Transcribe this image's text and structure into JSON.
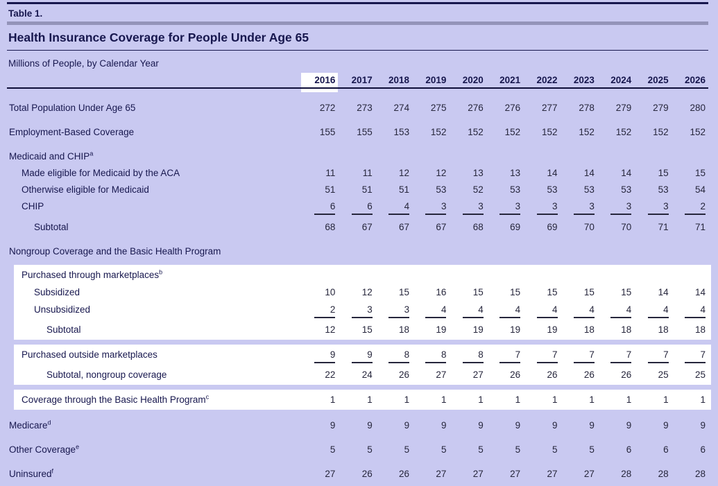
{
  "header": {
    "table_label": "Table 1.",
    "title": "Health Insurance Coverage for People Under Age 65",
    "subtitle": "Millions of People, by Calendar Year"
  },
  "columns": {
    "years": [
      "2016",
      "2017",
      "2018",
      "2019",
      "2020",
      "2021",
      "2022",
      "2023",
      "2024",
      "2025",
      "2026"
    ],
    "highlighted_year": "2016"
  },
  "rows": [
    {
      "label": "Total Population Under Age 65",
      "indent": 0,
      "gap": "lg",
      "values": [
        272,
        273,
        274,
        275,
        276,
        276,
        277,
        278,
        279,
        279,
        280
      ]
    },
    {
      "label": "Employment-Based Coverage",
      "indent": 0,
      "gap": "lg",
      "values": [
        155,
        155,
        153,
        152,
        152,
        152,
        152,
        152,
        152,
        152,
        152
      ]
    },
    {
      "label": "Medicaid and CHIP",
      "sup": "a",
      "indent": 0,
      "gap": "lg",
      "values": null
    },
    {
      "label": "Made eligible for Medicaid by the ACA",
      "indent": 1,
      "values": [
        11,
        11,
        12,
        12,
        13,
        13,
        14,
        14,
        14,
        15,
        15
      ]
    },
    {
      "label": "Otherwise eligible for Medicaid",
      "indent": 1,
      "values": [
        51,
        51,
        51,
        53,
        52,
        53,
        53,
        53,
        53,
        53,
        54
      ]
    },
    {
      "label": "CHIP",
      "indent": 1,
      "ruled": true,
      "values": [
        6,
        6,
        4,
        3,
        3,
        3,
        3,
        3,
        3,
        3,
        2
      ]
    },
    {
      "label": "Subtotal",
      "indent": 2,
      "gap": "sub",
      "values": [
        68,
        67,
        67,
        67,
        68,
        69,
        69,
        70,
        70,
        71,
        71
      ]
    },
    {
      "label": "Nongroup Coverage and the Basic Health Program",
      "indent": 0,
      "gap": "lg",
      "values": null
    },
    {
      "label": "Purchased through marketplaces",
      "sup": "b",
      "indent": 1,
      "box": "a",
      "values": null
    },
    {
      "label": "Subsidized",
      "indent": 2,
      "box": "a",
      "values": [
        10,
        12,
        15,
        16,
        15,
        15,
        15,
        15,
        15,
        14,
        14
      ]
    },
    {
      "label": "Unsubsidized",
      "indent": 2,
      "box": "a",
      "ruled": true,
      "values": [
        2,
        3,
        3,
        4,
        4,
        4,
        4,
        4,
        4,
        4,
        4
      ]
    },
    {
      "label": "Subtotal",
      "indent": 3,
      "box": "a",
      "gap": "sub",
      "values": [
        12,
        15,
        18,
        19,
        19,
        19,
        19,
        18,
        18,
        18,
        18
      ]
    },
    {
      "label": "Purchased outside marketplaces",
      "indent": 1,
      "box": "b",
      "ruled": true,
      "values": [
        9,
        9,
        8,
        8,
        8,
        7,
        7,
        7,
        7,
        7,
        7
      ]
    },
    {
      "label": "Subtotal, nongroup coverage",
      "indent": 3,
      "box": "b",
      "gap": "sub",
      "values": [
        22,
        24,
        26,
        27,
        27,
        26,
        26,
        26,
        26,
        25,
        25
      ]
    },
    {
      "label": "Coverage through the Basic Health Program",
      "sup": "c",
      "indent": 1,
      "box": "c",
      "values": [
        1,
        1,
        1,
        1,
        1,
        1,
        1,
        1,
        1,
        1,
        1
      ]
    },
    {
      "label": "Medicare",
      "sup": "d",
      "indent": 0,
      "gap": "lg",
      "values": [
        9,
        9,
        9,
        9,
        9,
        9,
        9,
        9,
        9,
        9,
        9
      ]
    },
    {
      "label": "Other Coverage",
      "sup": "e",
      "indent": 0,
      "gap": "lg",
      "values": [
        5,
        5,
        5,
        5,
        5,
        5,
        5,
        5,
        6,
        6,
        6
      ]
    },
    {
      "label": "Uninsured",
      "sup": "f",
      "indent": 0,
      "gap": "lg",
      "values": [
        27,
        26,
        26,
        27,
        27,
        27,
        27,
        27,
        28,
        28,
        28
      ]
    }
  ],
  "colors": {
    "background": "#c9c9f1",
    "dark_navy": "#17174e",
    "gray_bar": "#9494b9",
    "highlight": "#ffffff",
    "number_text": "#26263c"
  }
}
